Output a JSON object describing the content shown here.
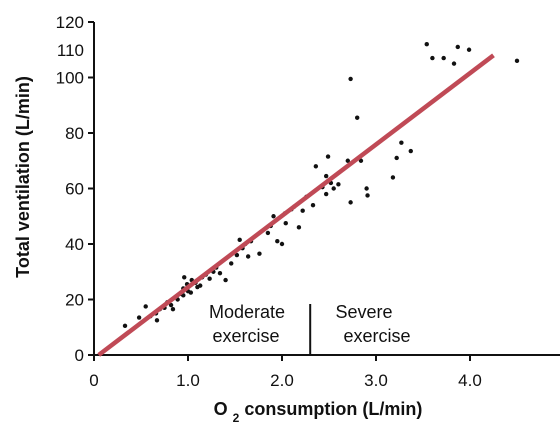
{
  "chart_data": {
    "type": "scatter",
    "x_range": [
      0,
      5
    ],
    "y_range": [
      0,
      120
    ],
    "x_ticks": [
      0,
      1.0,
      2.0,
      3.0,
      4.0
    ],
    "x_tick_labels": [
      "0",
      "1.0",
      "2.0",
      "3.0",
      "4.0"
    ],
    "y_ticks": [
      0,
      20,
      40,
      60,
      80,
      100,
      120
    ],
    "y_tick_labels": [
      "0",
      "20",
      "40",
      "60",
      "80",
      "100",
      "110",
      "120"
    ],
    "y_tick_label_values": [
      0,
      20,
      40,
      60,
      80,
      100,
      110,
      120
    ],
    "xlabel_main": "O",
    "xlabel_subscript": "2",
    "xlabel_rest": " consumption (L/min)",
    "ylabel": "Total ventilation (L/min)",
    "grid": false,
    "points": [
      {
        "x": 0.33,
        "y": 10.5
      },
      {
        "x": 0.48,
        "y": 13.5
      },
      {
        "x": 0.55,
        "y": 17.5
      },
      {
        "x": 0.6,
        "y": 14.0
      },
      {
        "x": 0.66,
        "y": 15.0
      },
      {
        "x": 0.67,
        "y": 12.5
      },
      {
        "x": 0.7,
        "y": 16.5
      },
      {
        "x": 0.75,
        "y": 17.0
      },
      {
        "x": 0.78,
        "y": 19.0
      },
      {
        "x": 0.82,
        "y": 18.0
      },
      {
        "x": 0.84,
        "y": 16.5
      },
      {
        "x": 0.89,
        "y": 20.0
      },
      {
        "x": 0.93,
        "y": 22.0
      },
      {
        "x": 0.95,
        "y": 24.0
      },
      {
        "x": 0.95,
        "y": 21.5
      },
      {
        "x": 0.96,
        "y": 28.0
      },
      {
        "x": 0.99,
        "y": 25.5
      },
      {
        "x": 1.0,
        "y": 23.0
      },
      {
        "x": 1.03,
        "y": 22.5
      },
      {
        "x": 1.04,
        "y": 27.0
      },
      {
        "x": 1.08,
        "y": 26.0
      },
      {
        "x": 1.1,
        "y": 24.5
      },
      {
        "x": 1.13,
        "y": 25.0
      },
      {
        "x": 1.15,
        "y": 28.0
      },
      {
        "x": 1.19,
        "y": 29.0
      },
      {
        "x": 1.23,
        "y": 27.5
      },
      {
        "x": 1.27,
        "y": 30.0
      },
      {
        "x": 1.3,
        "y": 31.5
      },
      {
        "x": 1.34,
        "y": 29.5
      },
      {
        "x": 1.4,
        "y": 27.0
      },
      {
        "x": 1.46,
        "y": 33.0
      },
      {
        "x": 1.52,
        "y": 36.0
      },
      {
        "x": 1.55,
        "y": 41.5
      },
      {
        "x": 1.58,
        "y": 38.5
      },
      {
        "x": 1.61,
        "y": 40.0
      },
      {
        "x": 1.64,
        "y": 35.5
      },
      {
        "x": 1.67,
        "y": 41.0
      },
      {
        "x": 1.76,
        "y": 36.5
      },
      {
        "x": 1.85,
        "y": 44.0
      },
      {
        "x": 1.88,
        "y": 46.5
      },
      {
        "x": 1.91,
        "y": 50.0
      },
      {
        "x": 1.95,
        "y": 41.0
      },
      {
        "x": 2.0,
        "y": 40.0
      },
      {
        "x": 2.03,
        "y": 51.0
      },
      {
        "x": 2.04,
        "y": 47.5
      },
      {
        "x": 2.1,
        "y": 52.5
      },
      {
        "x": 2.13,
        "y": 53.5
      },
      {
        "x": 2.18,
        "y": 46.0
      },
      {
        "x": 2.22,
        "y": 52.0
      },
      {
        "x": 2.26,
        "y": 57.0
      },
      {
        "x": 2.33,
        "y": 54.0
      },
      {
        "x": 2.36,
        "y": 68.0
      },
      {
        "x": 2.43,
        "y": 60.5
      },
      {
        "x": 2.47,
        "y": 64.5
      },
      {
        "x": 2.47,
        "y": 58.0
      },
      {
        "x": 2.49,
        "y": 71.5
      },
      {
        "x": 2.52,
        "y": 62.0
      },
      {
        "x": 2.55,
        "y": 60.0
      },
      {
        "x": 2.6,
        "y": 61.5
      },
      {
        "x": 2.7,
        "y": 70.0
      },
      {
        "x": 2.73,
        "y": 99.5
      },
      {
        "x": 2.73,
        "y": 55.0
      },
      {
        "x": 2.8,
        "y": 85.5
      },
      {
        "x": 2.84,
        "y": 70.0
      },
      {
        "x": 2.9,
        "y": 60.0
      },
      {
        "x": 2.91,
        "y": 57.5
      },
      {
        "x": 3.18,
        "y": 64.0
      },
      {
        "x": 3.22,
        "y": 71.0
      },
      {
        "x": 3.27,
        "y": 76.5
      },
      {
        "x": 3.37,
        "y": 73.5
      },
      {
        "x": 3.54,
        "y": 112.0
      },
      {
        "x": 3.6,
        "y": 107.0
      },
      {
        "x": 3.72,
        "y": 107.0
      },
      {
        "x": 3.83,
        "y": 105.0
      },
      {
        "x": 3.87,
        "y": 111.0
      },
      {
        "x": 3.99,
        "y": 110.0
      },
      {
        "x": 4.5,
        "y": 106.0
      }
    ],
    "trend_line": {
      "x1": 0.05,
      "y1": 0.0,
      "x2": 4.25,
      "y2": 108.0,
      "color": "#c04a56"
    },
    "point_color": "#111111",
    "annotations": {
      "left_line1": "Moderate",
      "left_line2": "exercise",
      "right_line1": "Severe",
      "right_line2": "exercise",
      "divider_x": 2.3
    }
  }
}
